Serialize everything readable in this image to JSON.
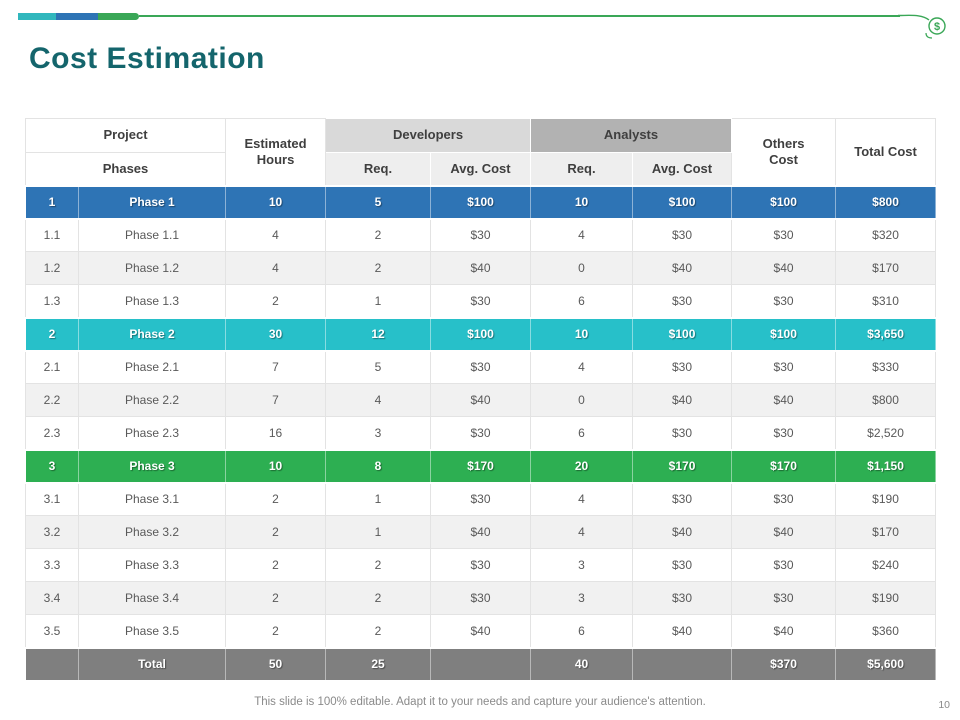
{
  "slide": {
    "title": "Cost Estimation",
    "footer": "This slide is 100% editable. Adapt it to your needs and capture your audience's attention.",
    "page_number": "10",
    "dollar_icon": "$"
  },
  "colors": {
    "title": "#14656c",
    "accent_teal": "#31b7bd",
    "accent_blue": "#2e74b5",
    "accent_green": "#3aa757",
    "phase1": "#2e74b5",
    "phase2": "#27c0c9",
    "phase3": "#2daf52",
    "total": "#7f7f7f"
  },
  "table": {
    "headers": {
      "project": "Project",
      "phases": "Phases",
      "estimated_hours": "Estimated\nHours",
      "developers": "Developers",
      "analysts": "Analysts",
      "req": "Req.",
      "avg_cost": "Avg. Cost",
      "others_cost": "Others\nCost",
      "total_cost": "Total Cost"
    },
    "rows": [
      {
        "type": "phase1",
        "num": "1",
        "name": "Phase 1",
        "hours": "10",
        "dev_req": "5",
        "dev_cost": "$100",
        "an_req": "10",
        "an_cost": "$100",
        "others": "$100",
        "total": "$800"
      },
      {
        "type": "odd",
        "num": "1.1",
        "name": "Phase 1.1",
        "hours": "4",
        "dev_req": "2",
        "dev_cost": "$30",
        "an_req": "4",
        "an_cost": "$30",
        "others": "$30",
        "total": "$320"
      },
      {
        "type": "even",
        "num": "1.2",
        "name": "Phase 1.2",
        "hours": "4",
        "dev_req": "2",
        "dev_cost": "$40",
        "an_req": "0",
        "an_cost": "$40",
        "others": "$40",
        "total": "$170"
      },
      {
        "type": "odd",
        "num": "1.3",
        "name": "Phase 1.3",
        "hours": "2",
        "dev_req": "1",
        "dev_cost": "$30",
        "an_req": "6",
        "an_cost": "$30",
        "others": "$30",
        "total": "$310"
      },
      {
        "type": "phase2",
        "num": "2",
        "name": "Phase 2",
        "hours": "30",
        "dev_req": "12",
        "dev_cost": "$100",
        "an_req": "10",
        "an_cost": "$100",
        "others": "$100",
        "total": "$3,650"
      },
      {
        "type": "odd",
        "num": "2.1",
        "name": "Phase 2.1",
        "hours": "7",
        "dev_req": "5",
        "dev_cost": "$30",
        "an_req": "4",
        "an_cost": "$30",
        "others": "$30",
        "total": "$330"
      },
      {
        "type": "even",
        "num": "2.2",
        "name": "Phase 2.2",
        "hours": "7",
        "dev_req": "4",
        "dev_cost": "$40",
        "an_req": "0",
        "an_cost": "$40",
        "others": "$40",
        "total": "$800"
      },
      {
        "type": "odd",
        "num": "2.3",
        "name": "Phase 2.3",
        "hours": "16",
        "dev_req": "3",
        "dev_cost": "$30",
        "an_req": "6",
        "an_cost": "$30",
        "others": "$30",
        "total": "$2,520"
      },
      {
        "type": "phase3",
        "num": "3",
        "name": "Phase 3",
        "hours": "10",
        "dev_req": "8",
        "dev_cost": "$170",
        "an_req": "20",
        "an_cost": "$170",
        "others": "$170",
        "total": "$1,150"
      },
      {
        "type": "odd",
        "num": "3.1",
        "name": "Phase 3.1",
        "hours": "2",
        "dev_req": "1",
        "dev_cost": "$30",
        "an_req": "4",
        "an_cost": "$30",
        "others": "$30",
        "total": "$190"
      },
      {
        "type": "even",
        "num": "3.2",
        "name": "Phase 3.2",
        "hours": "2",
        "dev_req": "1",
        "dev_cost": "$40",
        "an_req": "4",
        "an_cost": "$40",
        "others": "$40",
        "total": "$170"
      },
      {
        "type": "odd",
        "num": "3.3",
        "name": "Phase 3.3",
        "hours": "2",
        "dev_req": "2",
        "dev_cost": "$30",
        "an_req": "3",
        "an_cost": "$30",
        "others": "$30",
        "total": "$240"
      },
      {
        "type": "even",
        "num": "3.4",
        "name": "Phase 3.4",
        "hours": "2",
        "dev_req": "2",
        "dev_cost": "$30",
        "an_req": "3",
        "an_cost": "$30",
        "others": "$30",
        "total": "$190"
      },
      {
        "type": "odd",
        "num": "3.5",
        "name": "Phase 3.5",
        "hours": "2",
        "dev_req": "2",
        "dev_cost": "$40",
        "an_req": "6",
        "an_cost": "$40",
        "others": "$40",
        "total": "$360"
      },
      {
        "type": "total",
        "num": "",
        "name": "Total",
        "hours": "50",
        "dev_req": "25",
        "dev_cost": "",
        "an_req": "40",
        "an_cost": "",
        "others": "$370",
        "total": "$5,600"
      }
    ]
  }
}
